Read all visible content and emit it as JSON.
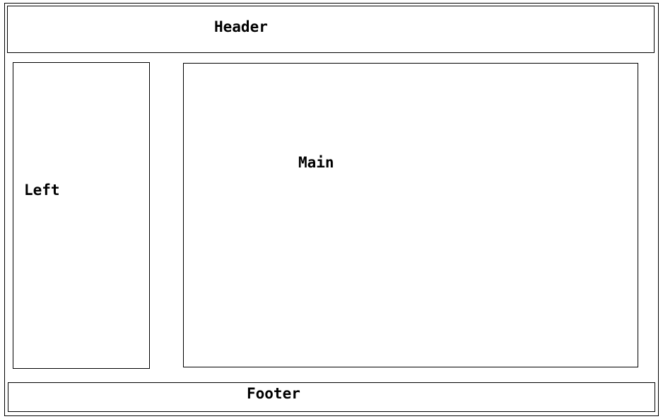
{
  "header": {
    "label": "Header"
  },
  "left": {
    "label": "Left"
  },
  "main": {
    "label": "Main"
  },
  "footer": {
    "label": "Footer"
  }
}
